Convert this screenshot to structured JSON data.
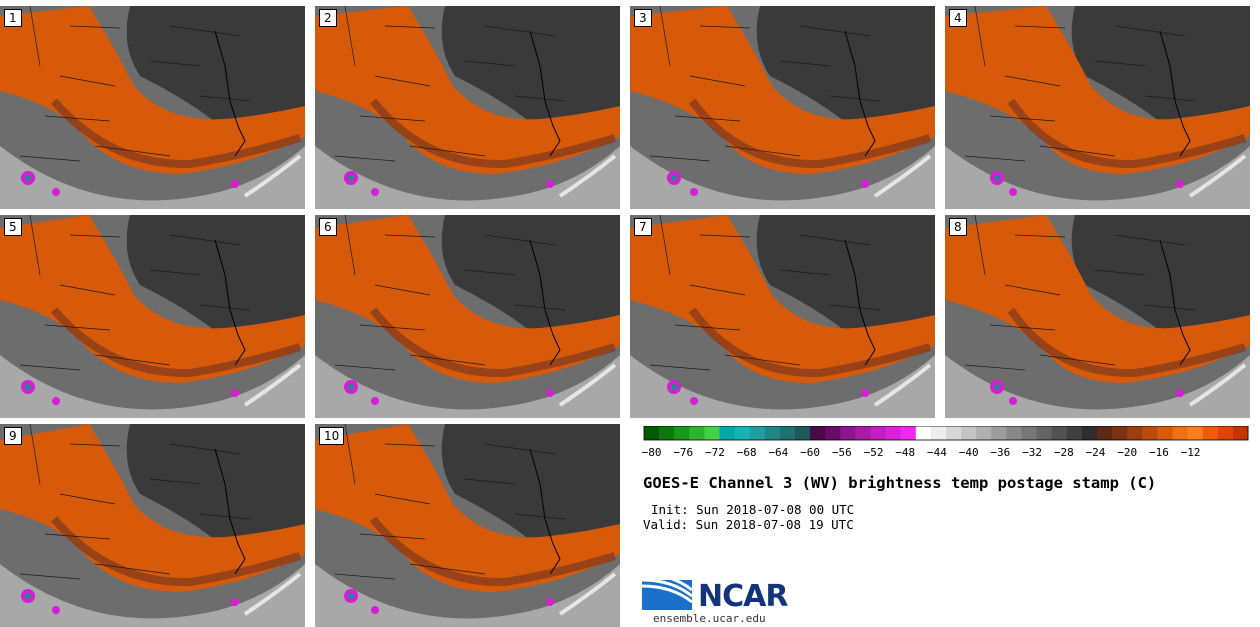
{
  "panels": [
    {
      "label": "1"
    },
    {
      "label": "2"
    },
    {
      "label": "3"
    },
    {
      "label": "4"
    },
    {
      "label": "5"
    },
    {
      "label": "6"
    },
    {
      "label": "7"
    },
    {
      "label": "8"
    },
    {
      "label": "9"
    },
    {
      "label": "10"
    }
  ],
  "colorbar": {
    "ticks": [
      "−80",
      "−76",
      "−72",
      "−68",
      "−64",
      "−60",
      "−56",
      "−52",
      "−48",
      "−44",
      "−40",
      "−36",
      "−32",
      "−28",
      "−24",
      "−20",
      "−16",
      "−12"
    ],
    "colors": [
      "#005a00",
      "#0a7a0a",
      "#199919",
      "#2cb52c",
      "#43d143",
      "#00a8a8",
      "#14b4b4",
      "#1e9e9e",
      "#1f8686",
      "#1e7070",
      "#1a5a5a",
      "#4a0a4a",
      "#6a0a6a",
      "#8c148c",
      "#a81aa8",
      "#c21ec2",
      "#da22da",
      "#f028f0",
      "#ffffff",
      "#ececec",
      "#d8d8d8",
      "#c4c4c4",
      "#b0b0b0",
      "#9c9c9c",
      "#888888",
      "#767676",
      "#646464",
      "#525252",
      "#404040",
      "#2e2e2e",
      "#5a2a14",
      "#7a3212",
      "#9c3e10",
      "#bd4c0c",
      "#d65a08",
      "#f07014",
      "#ff7e1e",
      "#f05a0a",
      "#e04406",
      "#c83400"
    ]
  },
  "title": "GOES-E Channel 3 (WV) brightness temp postage stamp (C)",
  "init": "Init: Sun 2018-07-08 00 UTC",
  "valid": "Valid: Sun 2018-07-08 19 UTC",
  "logo": {
    "text": "NCAR",
    "site": "ensemble.ucar.edu"
  },
  "colors": {
    "orange": "#d65a0a",
    "dark_orange": "#8a3c1a",
    "gray_dark": "#3a3a3a",
    "gray_mid": "#6d6d6d",
    "gray_light": "#a8a8a8",
    "magenta": "#d61ed6",
    "teal": "#1e8a8a"
  }
}
